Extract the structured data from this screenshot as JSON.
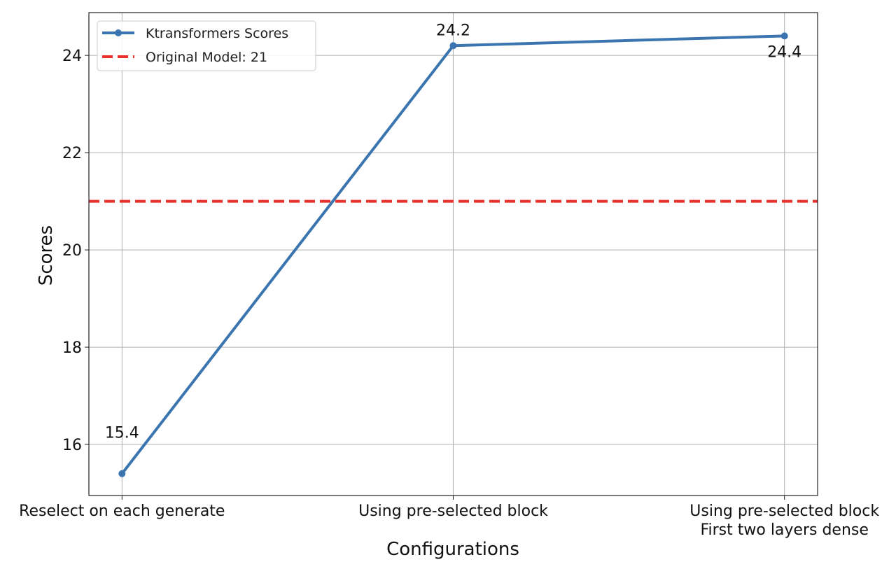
{
  "chart_data": {
    "type": "line",
    "title": "",
    "xlabel": "Configurations",
    "ylabel": "Scores",
    "categories": [
      "Reselect on each generate",
      "Using pre-selected block",
      "Using pre-selected block\nFirst two layers dense"
    ],
    "series": [
      {
        "name": "Ktransformers Scores",
        "values": [
          15.4,
          24.2,
          24.4
        ],
        "color": "#3a75b0",
        "data_labels": [
          "15.4",
          "24.2",
          "24.4"
        ]
      }
    ],
    "reference_lines": [
      {
        "name": "Original Model: 21",
        "y": 21,
        "color": "#e8312a",
        "style": "dashed"
      }
    ],
    "yticks": [
      16,
      18,
      20,
      22,
      24
    ],
    "ylim": [
      14.95,
      24.88
    ],
    "xlim": [
      -0.1,
      2.1
    ],
    "grid": true,
    "legend": "top-left"
  }
}
